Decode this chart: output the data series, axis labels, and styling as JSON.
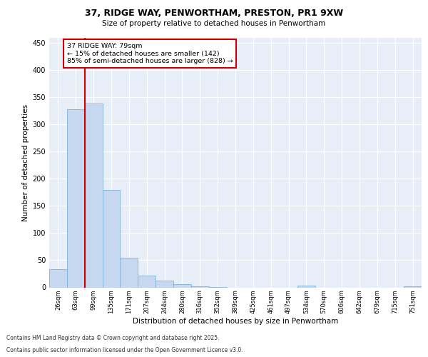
{
  "title_line1": "37, RIDGE WAY, PENWORTHAM, PRESTON, PR1 9XW",
  "title_line2": "Size of property relative to detached houses in Penwortham",
  "xlabel": "Distribution of detached houses by size in Penwortham",
  "ylabel": "Number of detached properties",
  "categories": [
    "26sqm",
    "63sqm",
    "99sqm",
    "135sqm",
    "171sqm",
    "207sqm",
    "244sqm",
    "280sqm",
    "316sqm",
    "352sqm",
    "389sqm",
    "425sqm",
    "461sqm",
    "497sqm",
    "534sqm",
    "570sqm",
    "606sqm",
    "642sqm",
    "679sqm",
    "715sqm",
    "751sqm"
  ],
  "values": [
    33,
    328,
    338,
    180,
    55,
    22,
    13,
    6,
    2,
    1,
    0,
    0,
    0,
    0,
    3,
    0,
    0,
    0,
    0,
    0,
    2
  ],
  "bar_color": "#c5d8ef",
  "bar_edge_color": "#7fb3d8",
  "vline_x_index": 1.5,
  "vline_color": "#cc0000",
  "annotation_text_line1": "37 RIDGE WAY: 79sqm",
  "annotation_text_line2": "← 15% of detached houses are smaller (142)",
  "annotation_text_line3": "85% of semi-detached houses are larger (828) →",
  "annotation_box_color": "#cc0000",
  "annotation_bg_color": "#ffffff",
  "ylim": [
    0,
    460
  ],
  "yticks": [
    0,
    50,
    100,
    150,
    200,
    250,
    300,
    350,
    400,
    450
  ],
  "bg_color": "#e8eef7",
  "grid_color": "#ffffff",
  "footer_line1": "Contains HM Land Registry data © Crown copyright and database right 2025.",
  "footer_line2": "Contains public sector information licensed under the Open Government Licence v3.0."
}
